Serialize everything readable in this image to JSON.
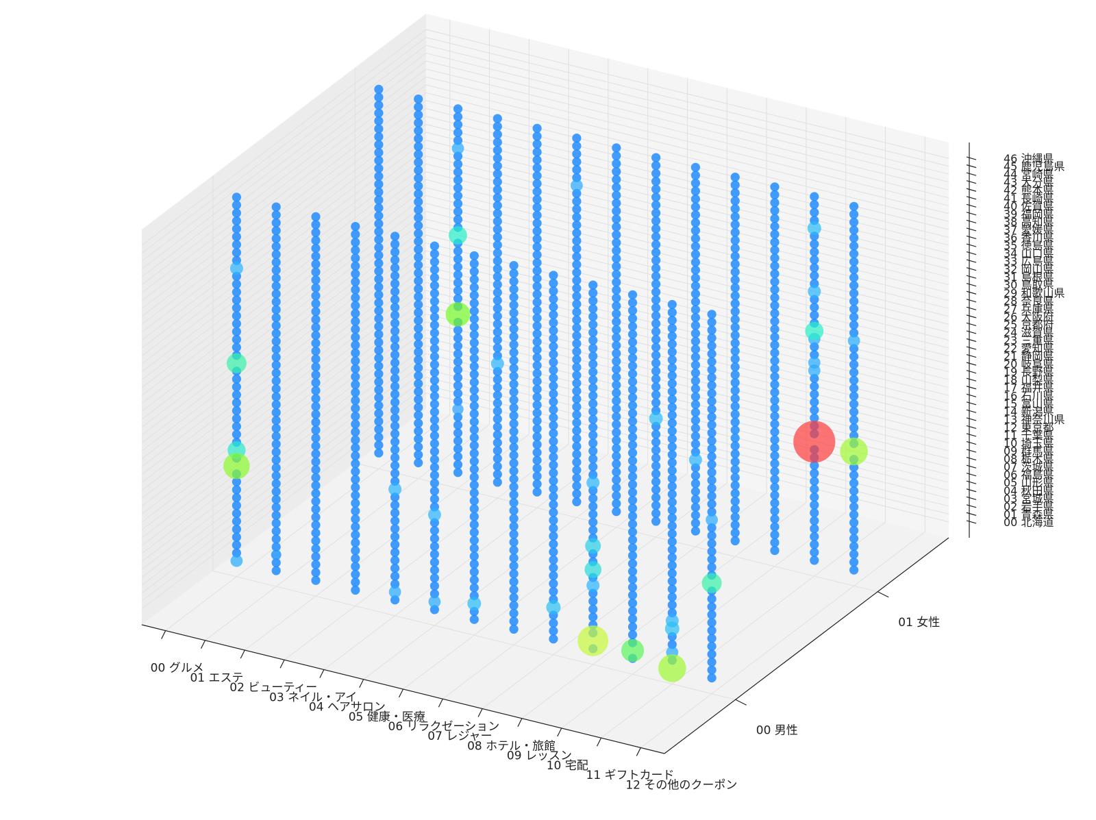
{
  "chart_data": {
    "type": "scatter",
    "projection": "3d",
    "title": "",
    "xlabel": "",
    "ylabel": "",
    "zlabel": "",
    "grid": true,
    "x_categories": [
      "00 グルメ",
      "01 エステ",
      "02 ビューティー",
      "03 ネイル・アイ",
      "04 ヘアサロン",
      "05 健康・医療",
      "06 リラクゼーション",
      "07 レジャー",
      "08 ホテル・旅館",
      "09 レッスン",
      "10 宅配",
      "11 ギフトカード",
      "12 その他のクーポン"
    ],
    "y_categories": [
      "00 男性",
      "01 女性"
    ],
    "z_categories": [
      "00 北海道",
      "01 青森県",
      "02 岩手県",
      "03 宮城県",
      "04 秋田県",
      "05 山形県",
      "06 福島県",
      "07 茨城県",
      "08 栃木県",
      "09 群馬県",
      "10 埼玉県",
      "11 千葉県",
      "12 東京都",
      "13 神奈川県",
      "14 新潟県",
      "15 富山県",
      "16 石川県",
      "17 福井県",
      "18 山梨県",
      "19 長野県",
      "20 岐阜県",
      "21 静岡県",
      "22 愛知県",
      "23 三重県",
      "24 滋賀県",
      "25 京都府",
      "26 大阪府",
      "27 兵庫県",
      "28 奈良県",
      "29 和歌山県",
      "30 鳥取県",
      "31 島根県",
      "32 岡山県",
      "33 広島県",
      "34 山口県",
      "35 徳島県",
      "36 香川県",
      "37 愛媛県",
      "38 高知県",
      "39 福岡県",
      "40 佐賀県",
      "41 長崎県",
      "42 熊本県",
      "43 大分県",
      "44 宮崎県",
      "45 鹿児島県",
      "46 沖縄県"
    ],
    "size_scale": "relative count (0-1)",
    "default_size": 0.02,
    "highlights": [
      {
        "x": 0,
        "y": 0,
        "z": 12,
        "size": 0.35
      },
      {
        "x": 0,
        "y": 0,
        "z": 14,
        "size": 0.14
      },
      {
        "x": 0,
        "y": 0,
        "z": 25,
        "size": 0.18
      },
      {
        "x": 0,
        "y": 0,
        "z": 37,
        "size": 0.06
      },
      {
        "x": 0,
        "y": 0,
        "z": 0,
        "size": 0.05
      },
      {
        "x": 1,
        "y": 0,
        "z": 2,
        "size": 0.03
      },
      {
        "x": 2,
        "y": 1,
        "z": 20,
        "size": 0.3
      },
      {
        "x": 2,
        "y": 1,
        "z": 30,
        "size": 0.15
      },
      {
        "x": 2,
        "y": 1,
        "z": 41,
        "size": 0.05
      },
      {
        "x": 2,
        "y": 1,
        "z": 8,
        "size": 0.04
      },
      {
        "x": 3,
        "y": 1,
        "z": 15,
        "size": 0.06
      },
      {
        "x": 4,
        "y": 0,
        "z": 14,
        "size": 0.06
      },
      {
        "x": 4,
        "y": 0,
        "z": 1,
        "size": 0.05
      },
      {
        "x": 5,
        "y": 0,
        "z": 12,
        "size": 0.06
      },
      {
        "x": 5,
        "y": 1,
        "z": 40,
        "size": 0.05
      },
      {
        "x": 5,
        "y": 0,
        "z": 1,
        "size": 0.05
      },
      {
        "x": 6,
        "y": 0,
        "z": 2,
        "size": 0.07
      },
      {
        "x": 7,
        "y": 1,
        "z": 13,
        "size": 0.07
      },
      {
        "x": 8,
        "y": 0,
        "z": 4,
        "size": 0.08
      },
      {
        "x": 8,
        "y": 1,
        "z": 9,
        "size": 0.06
      },
      {
        "x": 9,
        "y": 0,
        "z": 1,
        "size": 0.5
      },
      {
        "x": 9,
        "y": 0,
        "z": 10,
        "size": 0.12
      },
      {
        "x": 9,
        "y": 0,
        "z": 13,
        "size": 0.1
      },
      {
        "x": 9,
        "y": 0,
        "z": 8,
        "size": 0.06
      },
      {
        "x": 9,
        "y": 0,
        "z": 21,
        "size": 0.06
      },
      {
        "x": 10,
        "y": 0,
        "z": 1,
        "size": 0.25
      },
      {
        "x": 11,
        "y": 0,
        "z": 0,
        "size": 0.4
      },
      {
        "x": 11,
        "y": 0,
        "z": 5,
        "size": 0.08
      },
      {
        "x": 11,
        "y": 0,
        "z": 6,
        "size": 0.06
      },
      {
        "x": 11,
        "y": 1,
        "z": 24,
        "size": 0.05
      },
      {
        "x": 11,
        "y": 0,
        "z": 2,
        "size": 0.05
      },
      {
        "x": 11,
        "y": 1,
        "z": 15,
        "size": 1.0
      },
      {
        "x": 11,
        "y": 1,
        "z": 29,
        "size": 0.15
      },
      {
        "x": 11,
        "y": 1,
        "z": 34,
        "size": 0.06
      },
      {
        "x": 11,
        "y": 1,
        "z": 28,
        "size": 0.05
      },
      {
        "x": 11,
        "y": 1,
        "z": 25,
        "size": 0.05
      },
      {
        "x": 11,
        "y": 1,
        "z": 42,
        "size": 0.07
      },
      {
        "x": 12,
        "y": 0,
        "z": 20,
        "size": 0.05
      },
      {
        "x": 12,
        "y": 0,
        "z": 12,
        "size": 0.18
      },
      {
        "x": 12,
        "y": 1,
        "z": 15,
        "size": 0.4
      },
      {
        "x": 12,
        "y": 1,
        "z": 29,
        "size": 0.05
      }
    ]
  }
}
